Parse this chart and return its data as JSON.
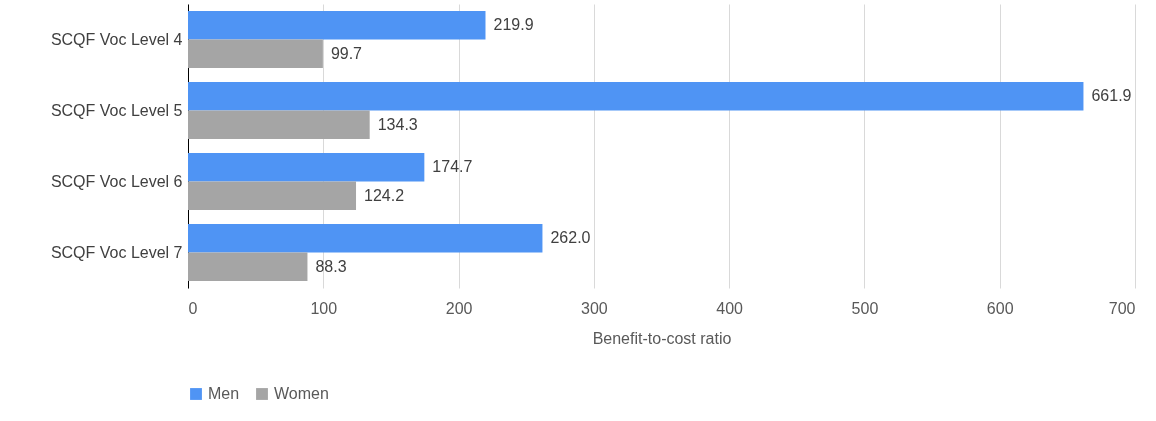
{
  "chart_data": {
    "type": "bar",
    "orientation": "horizontal",
    "xlabel": "Benefit-to-cost ratio",
    "categories": [
      "SCQF Voc Level 4",
      "SCQF Voc Level 5",
      "SCQF Voc Level 6",
      "SCQF Voc Level 7"
    ],
    "series": [
      {
        "name": "Men",
        "color": "#4f94f4",
        "values": [
          219.9,
          661.9,
          174.7,
          262.0
        ],
        "value_labels": [
          "219.9",
          "661.9",
          "174.7",
          "262.0"
        ]
      },
      {
        "name": "Women",
        "color": "#a5a5a5",
        "values": [
          99.7,
          134.3,
          124.2,
          88.3
        ],
        "value_labels": [
          "99.7",
          "134.3",
          "124.2",
          "88.3"
        ]
      }
    ],
    "xlim": [
      0,
      700
    ],
    "xticks": [
      0,
      100,
      200,
      300,
      400,
      500,
      600,
      700
    ],
    "grid": "x",
    "legend": "bottom"
  }
}
